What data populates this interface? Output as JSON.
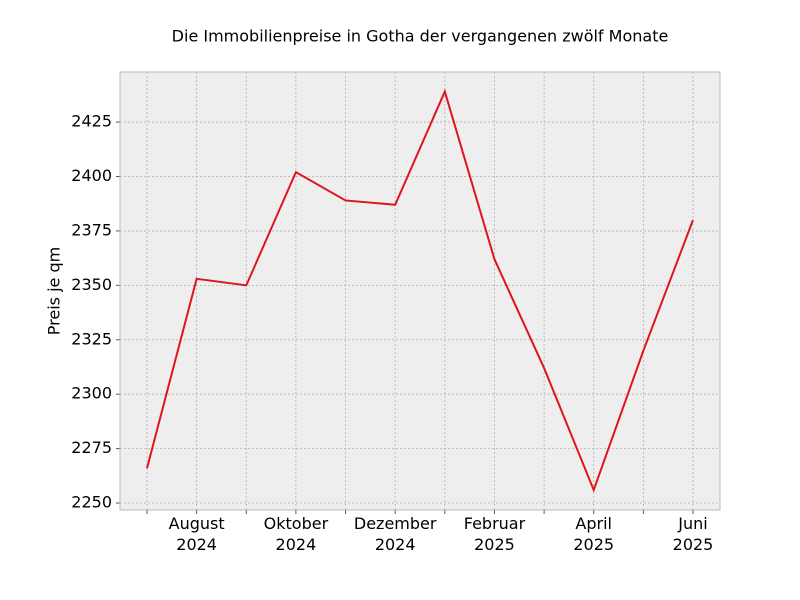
{
  "chart_data": {
    "type": "line",
    "title": "Die Immobilienpreise in Gotha der vergangenen zwölf Monate",
    "y_label": "Preis je qm",
    "categories": [
      null,
      "August\n2024",
      null,
      "Oktober\n2024",
      null,
      "Dezember\n2024",
      null,
      "Februar\n2025",
      null,
      "April\n2025",
      null,
      "Juni\n2025"
    ],
    "series": [
      {
        "name": "Preis je qm",
        "color": "#e0141e",
        "values": [
          2266,
          2353,
          2350,
          2402,
          2389,
          2387,
          2439,
          2362,
          2312,
          2256,
          2320,
          2380
        ]
      }
    ],
    "ylim": [
      2246.8,
      2448
    ],
    "yticks": [
      2250,
      2275,
      2300,
      2325,
      2350,
      2375,
      2400,
      2425
    ],
    "grid": true
  }
}
